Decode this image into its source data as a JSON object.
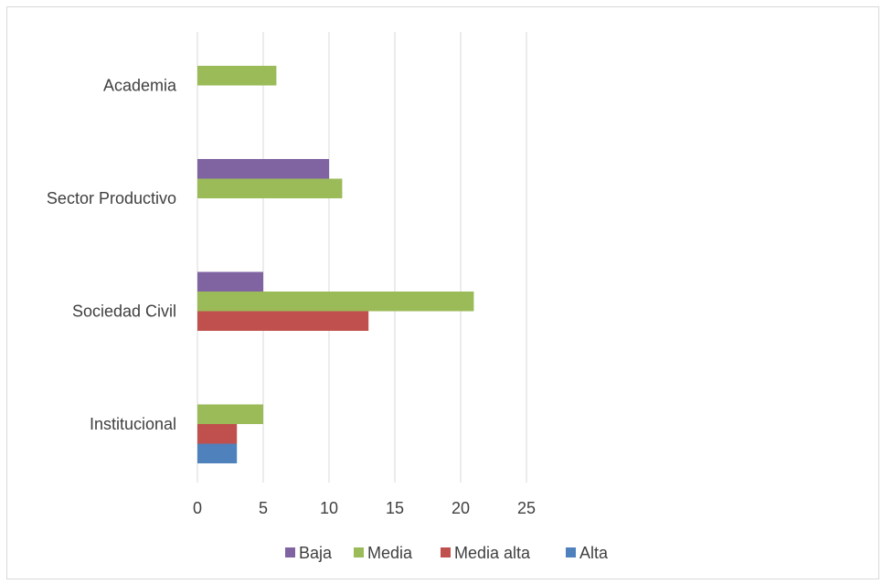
{
  "chart_data": {
    "type": "bar",
    "orientation": "horizontal",
    "categories": [
      "Institucional",
      "Sociedad Civil",
      "Sector Productivo",
      "Academia"
    ],
    "series": [
      {
        "name": "Alta",
        "color": "#4f81bd",
        "values": [
          3,
          0,
          0,
          0
        ]
      },
      {
        "name": "Media alta",
        "color": "#c0504d",
        "values": [
          3,
          13,
          0,
          0
        ]
      },
      {
        "name": "Media",
        "color": "#9bbb59",
        "values": [
          5,
          21,
          11,
          6
        ]
      },
      {
        "name": "Baja",
        "color": "#8064a2",
        "values": [
          0,
          5,
          10,
          0
        ]
      }
    ],
    "legend_order": [
      "Baja",
      "Media",
      "Media alta",
      "Alta"
    ],
    "xlim": [
      0,
      25
    ],
    "xticks": [
      0,
      5,
      10,
      15,
      20,
      25
    ],
    "grid": "vertical",
    "legend_position": "bottom"
  }
}
